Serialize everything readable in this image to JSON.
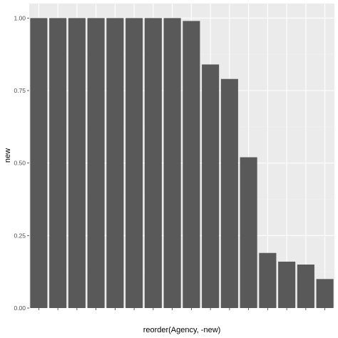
{
  "chart_data": {
    "type": "bar",
    "title": "",
    "xlabel": "reorder(Agency, -new)",
    "ylabel": "new",
    "categories": [
      "",
      "",
      "",
      "",
      "",
      "",
      "",
      "",
      "",
      "",
      "",
      "",
      "",
      "",
      "",
      ""
    ],
    "values": [
      1.0,
      1.0,
      1.0,
      1.0,
      1.0,
      1.0,
      1.0,
      1.0,
      0.99,
      0.84,
      0.79,
      0.52,
      0.19,
      0.16,
      0.15,
      0.1
    ],
    "ylim": [
      0,
      1.05
    ],
    "yticks": [
      0.0,
      0.25,
      0.5,
      0.75,
      1.0
    ],
    "ytick_labels": [
      "0.00",
      "0.25",
      "0.50",
      "0.75",
      "1.00"
    ],
    "grid": true,
    "legend": "none",
    "colors": {
      "bar": "#595959",
      "panel": "#ebebeb",
      "grid_major": "#ffffff",
      "grid_minor": "#f2f2f2",
      "tick": "#333333"
    }
  }
}
